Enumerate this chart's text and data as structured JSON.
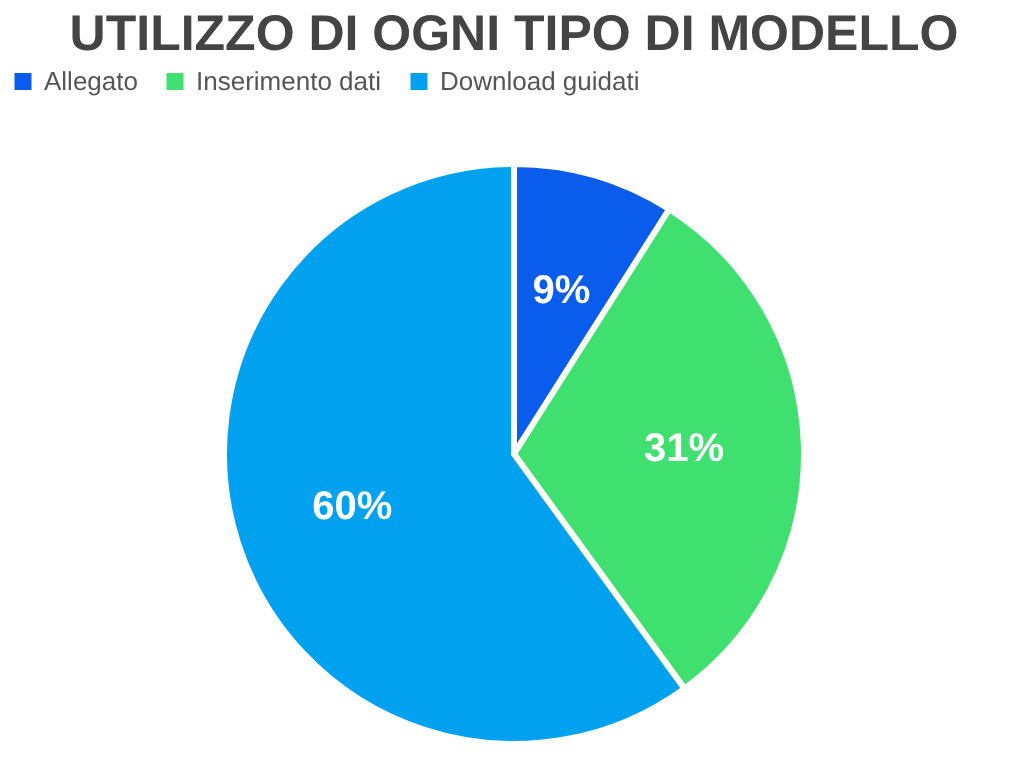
{
  "chart_data": {
    "type": "pie",
    "title": "UTILIZZO DI OGNI TIPO DI MODELLO",
    "categories": [
      "Allegato",
      "Inserimento dati",
      "Download guidati"
    ],
    "values": [
      9,
      31,
      60
    ],
    "colors": [
      "#0a5ced",
      "#40e070",
      "#00a2f0"
    ],
    "value_labels": [
      "9%",
      "31%",
      "60%"
    ],
    "legend": "top"
  }
}
